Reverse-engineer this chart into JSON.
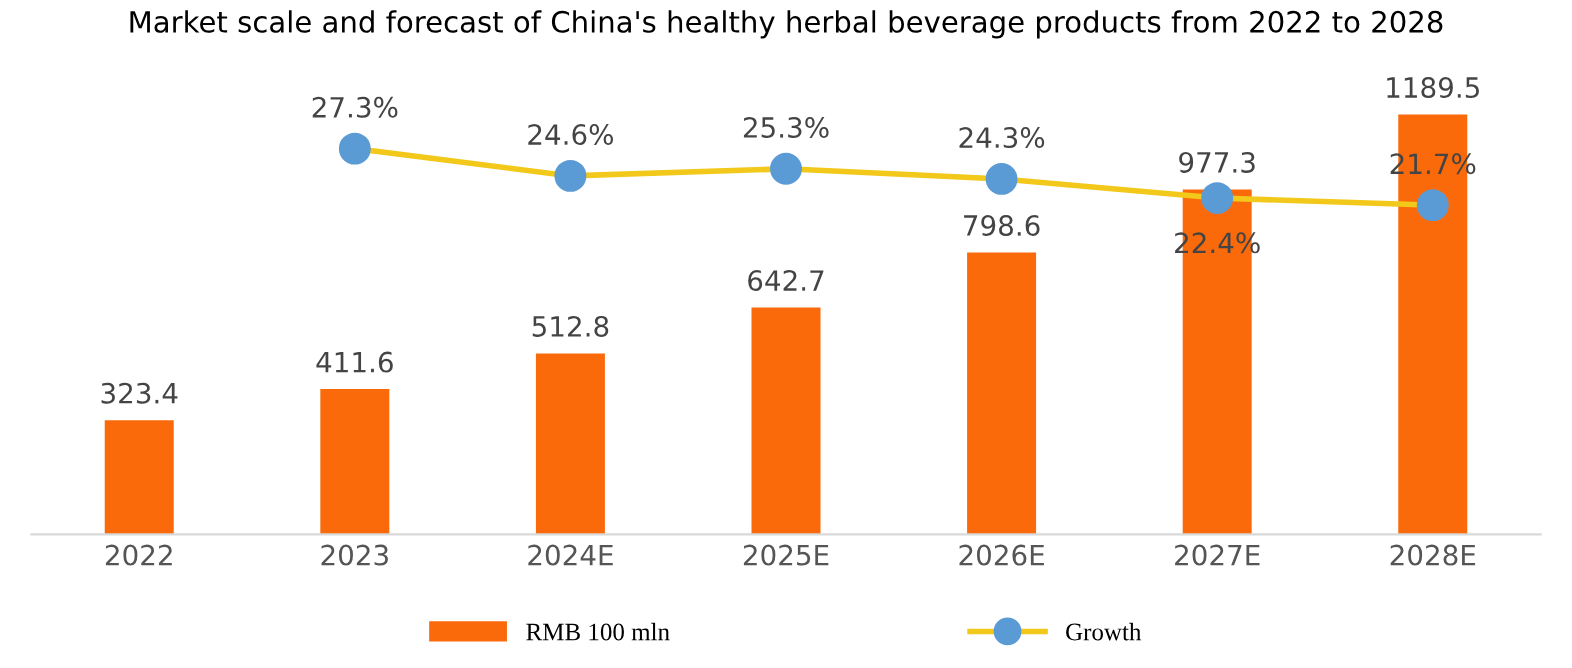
{
  "chart_data": {
    "type": "bar",
    "title": "Market scale and forecast of China's healthy herbal beverage products from 2022 to 2028",
    "categories": [
      "2022",
      "2023",
      "2024E",
      "2025E",
      "2026E",
      "2027E",
      "2028E"
    ],
    "series": [
      {
        "name": "RMB 100 mln",
        "color": "#fa6a0a",
        "values": [
          323.4,
          411.6,
          512.8,
          642.7,
          798.6,
          977.3,
          1189.5
        ]
      },
      {
        "name": "Growth",
        "type": "line",
        "axis": "y2",
        "color": "#f2c81a",
        "colors": [
          null,
          "#5b9bd5",
          "#5b9bd5",
          "#5b9bd5",
          "#5b9bd5",
          "#5b9bd5",
          "#5b9bd5"
        ],
        "marker": "circle",
        "values": [
          null,
          27.3,
          24.6,
          25.3,
          24.3,
          22.4,
          21.7
        ],
        "value_labels": [
          null,
          "27.3%",
          "24.6%",
          "25.3%",
          "24.3%",
          "22.4%",
          "21.7%"
        ]
      }
    ],
    "data_labels": true,
    "tick_labels": "x",
    "grid": false,
    "legend": "bottom"
  }
}
